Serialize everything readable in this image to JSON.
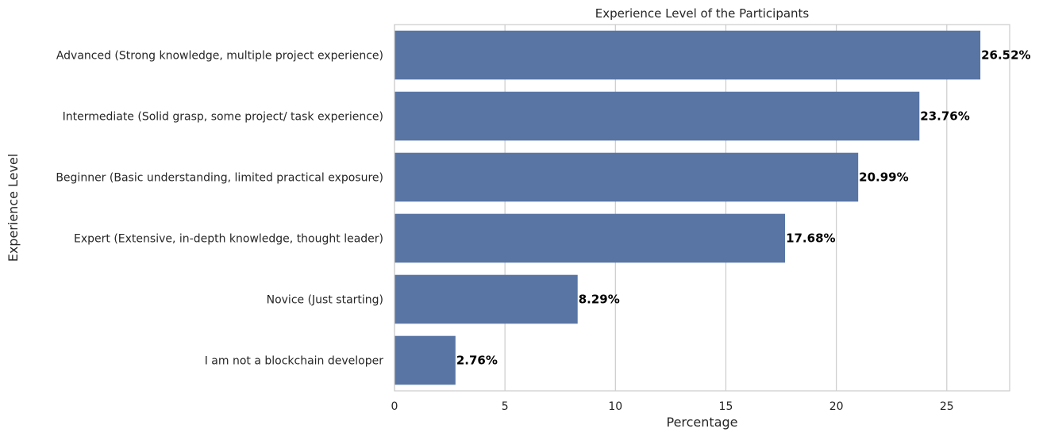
{
  "chart_data": {
    "type": "bar",
    "orientation": "horizontal",
    "title": "Experience Level of the Participants",
    "xlabel": "Percentage",
    "ylabel": "Experience Level",
    "xlim": [
      0,
      27.846
    ],
    "x_ticks": [
      0,
      5,
      10,
      15,
      20,
      25
    ],
    "grid": true,
    "legend": "none",
    "bar_color": "#5875a4",
    "data_label_color": "#000000",
    "categories": [
      "Advanced (Strong knowledge, multiple project experience)",
      "Intermediate (Solid grasp, some project/ task experience)",
      "Beginner (Basic understanding, limited practical exposure)",
      "Expert (Extensive, in-depth knowledge, thought leader)",
      "Novice (Just starting)",
      "I am not a blockchain developer"
    ],
    "values": [
      26.52,
      23.76,
      20.99,
      17.68,
      8.29,
      2.76
    ],
    "data_labels": [
      "26.52%",
      "23.76%",
      "20.99%",
      "17.68%",
      "8.29%",
      "2.76%"
    ]
  }
}
